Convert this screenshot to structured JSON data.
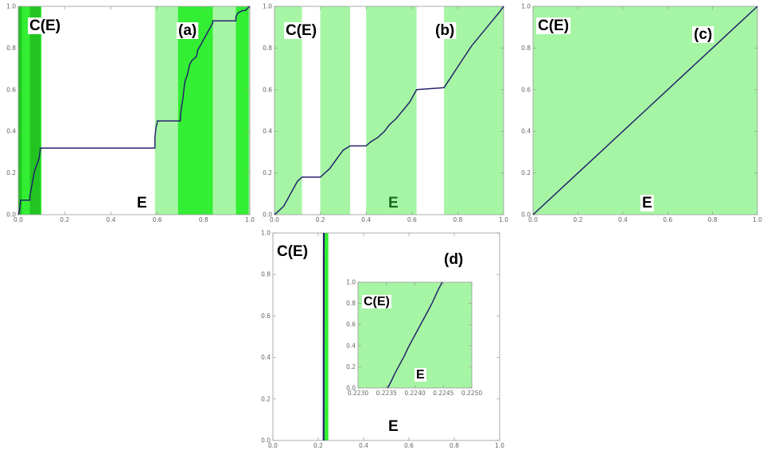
{
  "chart_data": [
    {
      "id": "a",
      "type": "line",
      "panel_label": "(a)",
      "ylabel": "C(E)",
      "xlabel": "E",
      "xlim": [
        0,
        1
      ],
      "ylim": [
        0,
        1
      ],
      "x_ticks": [
        "0.0",
        "0.2",
        "0.4",
        "0.6",
        "0.8",
        "1.0"
      ],
      "y_ticks": [
        "0.0",
        "0.2",
        "0.4",
        "0.6",
        "0.8",
        "1.0"
      ],
      "bands": [
        {
          "from": 0.0,
          "to": 0.1,
          "shade": "medium"
        },
        {
          "from": 0.0,
          "to": 0.015,
          "shade": "dark"
        },
        {
          "from": 0.05,
          "to": 0.095,
          "shade": "dark"
        },
        {
          "from": 0.59,
          "to": 1.0,
          "shade": "light"
        },
        {
          "from": 0.69,
          "to": 0.84,
          "shade": "medium"
        },
        {
          "from": 0.94,
          "to": 0.995,
          "shade": "medium"
        }
      ],
      "series": [
        {
          "x": [
            0.0,
            0.005,
            0.01,
            0.01,
            0.05,
            0.05,
            0.06,
            0.07,
            0.08,
            0.09,
            0.095,
            0.095,
            0.59,
            0.59,
            0.595,
            0.6,
            0.6,
            0.7,
            0.7,
            0.705,
            0.71,
            0.715,
            0.72,
            0.73,
            0.74,
            0.745,
            0.75,
            0.76,
            0.77,
            0.775,
            0.78,
            0.79,
            0.8,
            0.81,
            0.82,
            0.825,
            0.83,
            0.835,
            0.84,
            0.84,
            0.94,
            0.94,
            0.95,
            0.97,
            0.98,
            0.99,
            1.0
          ],
          "y": [
            0.0,
            0.02,
            0.07,
            0.07,
            0.07,
            0.09,
            0.15,
            0.21,
            0.24,
            0.27,
            0.31,
            0.32,
            0.32,
            0.37,
            0.42,
            0.44,
            0.45,
            0.45,
            0.47,
            0.52,
            0.55,
            0.6,
            0.64,
            0.67,
            0.72,
            0.73,
            0.74,
            0.75,
            0.76,
            0.79,
            0.8,
            0.82,
            0.84,
            0.86,
            0.88,
            0.89,
            0.9,
            0.91,
            0.92,
            0.93,
            0.93,
            0.95,
            0.97,
            0.98,
            0.98,
            0.99,
            1.0
          ]
        }
      ]
    },
    {
      "id": "b",
      "type": "line",
      "panel_label": "(b)",
      "ylabel": "C(E)",
      "xlabel": "E",
      "xlim": [
        0,
        1
      ],
      "ylim": [
        0,
        1
      ],
      "x_ticks": [
        "0.0",
        "0.2",
        "0.4",
        "0.6",
        "0.8",
        "1.0"
      ],
      "y_ticks": [
        "0.0",
        "0.2",
        "0.4",
        "0.6",
        "0.8",
        "1.0"
      ],
      "bands": [
        {
          "from": 0.0,
          "to": 0.12,
          "shade": "light"
        },
        {
          "from": 0.2,
          "to": 0.33,
          "shade": "light"
        },
        {
          "from": 0.4,
          "to": 0.62,
          "shade": "light"
        },
        {
          "from": 0.74,
          "to": 1.0,
          "shade": "light"
        }
      ],
      "series": [
        {
          "x": [
            0.0,
            0.02,
            0.04,
            0.06,
            0.08,
            0.1,
            0.12,
            0.2,
            0.22,
            0.24,
            0.26,
            0.28,
            0.3,
            0.33,
            0.4,
            0.42,
            0.45,
            0.48,
            0.5,
            0.53,
            0.56,
            0.59,
            0.62,
            0.74,
            0.77,
            0.8,
            0.83,
            0.86,
            0.89,
            0.92,
            0.95,
            0.98,
            1.0
          ],
          "y": [
            0.0,
            0.02,
            0.04,
            0.08,
            0.12,
            0.16,
            0.18,
            0.18,
            0.2,
            0.22,
            0.25,
            0.28,
            0.31,
            0.33,
            0.33,
            0.35,
            0.37,
            0.4,
            0.43,
            0.46,
            0.5,
            0.54,
            0.6,
            0.61,
            0.66,
            0.71,
            0.76,
            0.81,
            0.85,
            0.89,
            0.93,
            0.97,
            1.0
          ]
        }
      ]
    },
    {
      "id": "c",
      "type": "line",
      "panel_label": "(c)",
      "ylabel": "C(E)",
      "xlabel": "E",
      "xlim": [
        0,
        1
      ],
      "ylim": [
        0,
        1
      ],
      "x_ticks": [
        "0.0",
        "0.2",
        "0.4",
        "0.6",
        "0.8",
        "1.0"
      ],
      "y_ticks": [
        "0.0",
        "0.2",
        "0.4",
        "0.6",
        "0.8",
        "1.0"
      ],
      "bands": [
        {
          "from": 0.0,
          "to": 1.0,
          "shade": "light"
        }
      ],
      "series": [
        {
          "x": [
            0.0,
            0.1,
            0.2,
            0.3,
            0.4,
            0.5,
            0.6,
            0.7,
            0.8,
            0.9,
            1.0
          ],
          "y": [
            0.0,
            0.1,
            0.2,
            0.3,
            0.4,
            0.5,
            0.6,
            0.7,
            0.8,
            0.9,
            1.0
          ]
        }
      ]
    },
    {
      "id": "d",
      "type": "line",
      "panel_label": "(d)",
      "ylabel": "C(E)",
      "xlabel": "E",
      "xlim": [
        0,
        1
      ],
      "ylim": [
        0,
        1
      ],
      "x_ticks": [
        "0.0",
        "0.2",
        "0.4",
        "0.6",
        "0.8",
        "1.0"
      ],
      "y_ticks": [
        "0.0",
        "0.2",
        "0.4",
        "0.6",
        "0.8",
        "1.0"
      ],
      "bands": [
        {
          "from": 0.2235,
          "to": 0.2445,
          "shade": "medium"
        }
      ],
      "series": [
        {
          "x": [
            0.2235,
            0.2237,
            0.2239,
            0.2241,
            0.2243,
            0.2245
          ],
          "y": [
            0.0,
            0.2,
            0.4,
            0.6,
            0.8,
            1.0
          ]
        }
      ]
    },
    {
      "id": "d-inset",
      "type": "line",
      "ylabel": "C(E)",
      "xlabel": "E",
      "xlim": [
        0.223,
        0.225
      ],
      "ylim": [
        0,
        1
      ],
      "x_ticks": [
        "0.2230",
        "0.2235",
        "0.2240",
        "0.2245",
        "0.2250"
      ],
      "y_ticks": [
        "0.0",
        "0.2",
        "0.4",
        "0.6",
        "0.8",
        "1.0"
      ],
      "bands": [
        {
          "from": 0.223,
          "to": 0.225,
          "shade": "light"
        }
      ],
      "series": [
        {
          "x": [
            0.22352,
            0.22358,
            0.22364,
            0.2237,
            0.22376,
            0.22382,
            0.22388,
            0.22394,
            0.224,
            0.22406,
            0.22412,
            0.22418,
            0.22424,
            0.2243,
            0.22436,
            0.22442,
            0.22448
          ],
          "y": [
            0.0,
            0.06,
            0.13,
            0.19,
            0.25,
            0.31,
            0.38,
            0.44,
            0.5,
            0.56,
            0.62,
            0.68,
            0.74,
            0.8,
            0.87,
            0.94,
            1.0
          ]
        }
      ]
    }
  ],
  "colors": {
    "light": "#a6f5a4",
    "medium": "#33ee33",
    "dark": "#22c422",
    "curve": "#24236b",
    "axis": "#999999",
    "e_label_b": "#1a6b1a"
  }
}
